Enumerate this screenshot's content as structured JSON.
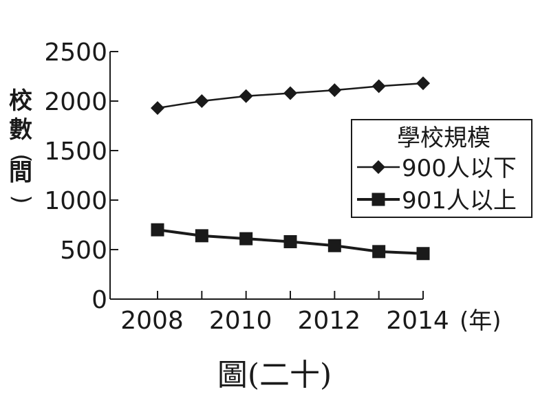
{
  "chart_data": {
    "type": "line",
    "title": "",
    "caption": "圖(二十)",
    "xlabel": "(年)",
    "ylabel": "校數(間)",
    "ylabel_chars": [
      "校",
      "數",
      "(",
      "間",
      ")"
    ],
    "x": [
      2008,
      2009,
      2010,
      2011,
      2012,
      2013,
      2014
    ],
    "xticks": [
      "2008",
      "2010",
      "2012",
      "2014"
    ],
    "ylim": [
      0,
      2500
    ],
    "yticks": [
      "0",
      "500",
      "1000",
      "1500",
      "2000",
      "2500"
    ],
    "legend_title": "學校規模",
    "legend_position": "right",
    "grid": false,
    "series": [
      {
        "name": "900人以下",
        "marker": "diamond",
        "values": [
          1930,
          2000,
          2050,
          2080,
          2110,
          2150,
          2180
        ]
      },
      {
        "name": "901人以上",
        "marker": "square",
        "values": [
          700,
          640,
          610,
          580,
          540,
          480,
          460
        ]
      }
    ],
    "colors": {
      "ink": "#1a1a1a",
      "background": "#ffffff"
    }
  }
}
